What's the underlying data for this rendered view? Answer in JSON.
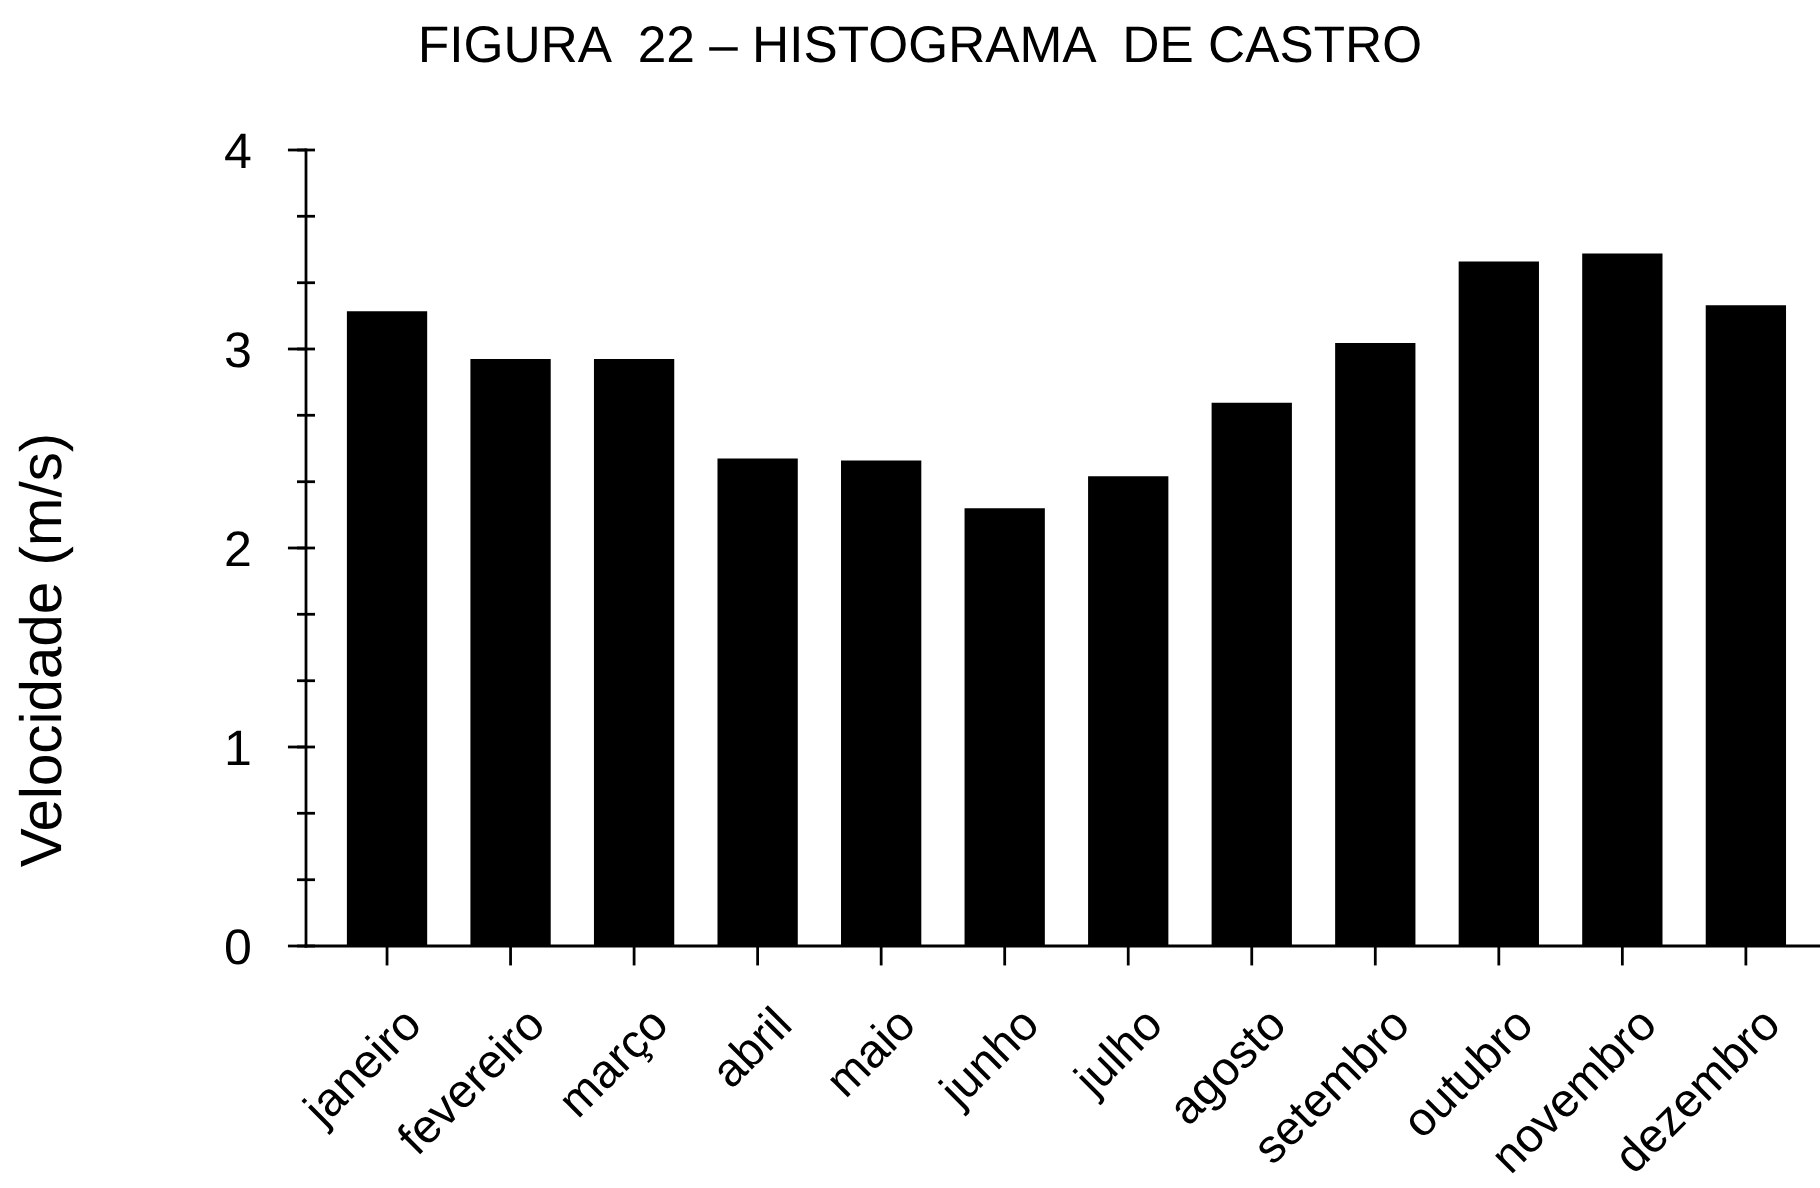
{
  "chart_data": {
    "type": "bar",
    "title": "FIGURA  22 – HISTOGRAMA  DE CASTRO",
    "ylabel": "Velocidade (m/s)",
    "categories": [
      "janeiro",
      "fevereiro",
      "março",
      "abril",
      "maio",
      "junho",
      "julho",
      "agosto",
      "setembro",
      "outubro",
      "novembro",
      "dezembro"
    ],
    "values": [
      3.19,
      2.95,
      2.95,
      2.45,
      2.44,
      2.2,
      2.36,
      2.73,
      3.03,
      3.44,
      3.48,
      3.22
    ],
    "color": "#000000",
    "ylim": [
      0,
      4
    ],
    "yticks": [
      0,
      {
        "value": 0.333,
        "label": null
      },
      {
        "value": 0.667,
        "label": null
      },
      1,
      {
        "value": 1.333,
        "label": null
      },
      {
        "value": 1.667,
        "label": null
      },
      2,
      {
        "value": 2.333,
        "label": null
      },
      {
        "value": 2.667,
        "label": null
      },
      3,
      {
        "value": 3.333,
        "label": null
      },
      {
        "value": 3.667,
        "label": null
      },
      4
    ]
  }
}
